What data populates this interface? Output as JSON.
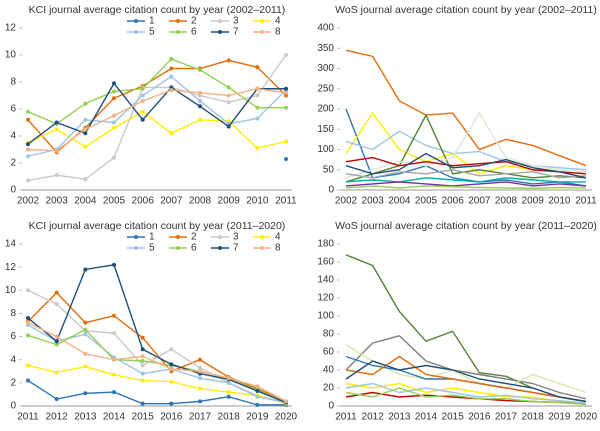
{
  "chart_data": [
    {
      "type": "line",
      "title": "KCI journal average citation count by year (2002–2011)",
      "categories": [
        "2002",
        "2003",
        "2004",
        "2005",
        "2006",
        "2007",
        "2008",
        "2009",
        "2010",
        "2011"
      ],
      "ylim": [
        0,
        12
      ],
      "yticks": [
        0,
        2,
        4,
        6,
        8,
        10,
        12
      ],
      "grid": false,
      "legend": "top-right",
      "series": [
        {
          "name": "1",
          "color": "#2e75b6",
          "values": [
            null,
            null,
            null,
            null,
            null,
            null,
            null,
            null,
            null,
            2.3
          ]
        },
        {
          "name": "2",
          "color": "#e46c0a",
          "values": [
            5.2,
            2.8,
            4.6,
            6.8,
            7.7,
            9.0,
            9.0,
            9.6,
            9.1,
            7.0
          ]
        },
        {
          "name": "3",
          "color": "#c8c8c8",
          "values": [
            0.7,
            1.1,
            0.8,
            2.4,
            7.6,
            7.6,
            7.0,
            6.5,
            7.0,
            10.0
          ]
        },
        {
          "name": "4",
          "color": "#ffee00",
          "values": [
            3.5,
            4.5,
            3.2,
            4.6,
            5.8,
            4.2,
            5.2,
            5.1,
            3.1,
            3.6
          ]
        },
        {
          "name": "5",
          "color": "#9dc3e6",
          "values": [
            2.5,
            3.0,
            5.2,
            5.0,
            7.0,
            8.4,
            6.6,
            4.9,
            5.3,
            7.4
          ]
        },
        {
          "name": "6",
          "color": "#92d050",
          "values": [
            5.8,
            4.9,
            6.4,
            7.3,
            7.5,
            9.7,
            8.9,
            7.6,
            6.1,
            6.1
          ]
        },
        {
          "name": "7",
          "color": "#1f4e79",
          "values": [
            3.4,
            5.0,
            4.2,
            7.9,
            5.2,
            7.6,
            6.2,
            4.7,
            7.5,
            7.5
          ]
        },
        {
          "name": "8",
          "color": "#f4b183",
          "values": [
            3.0,
            2.9,
            4.5,
            5.5,
            6.6,
            7.4,
            7.2,
            7.0,
            7.5,
            7.2
          ]
        }
      ]
    },
    {
      "type": "line",
      "title": "WoS journal average citation count by year (2002–2011)",
      "categories": [
        "2002",
        "2003",
        "2004",
        "2005",
        "2006",
        "2007",
        "2008",
        "2009",
        "2010",
        "2011"
      ],
      "ylim": [
        0,
        400
      ],
      "yticks": [
        0,
        50,
        100,
        150,
        200,
        250,
        300,
        350,
        400
      ],
      "grid": false,
      "series": [
        {
          "color": "#e46c0a",
          "values": [
            345,
            330,
            220,
            185,
            190,
            100,
            125,
            110,
            85,
            60
          ]
        },
        {
          "color": "#2e75b6",
          "values": [
            200,
            30,
            40,
            60,
            30,
            20,
            25,
            15,
            20,
            10
          ]
        },
        {
          "color": "#ffee00",
          "values": [
            90,
            190,
            100,
            70,
            90,
            40,
            60,
            50,
            45,
            40
          ]
        },
        {
          "color": "#9dc3e6",
          "values": [
            120,
            100,
            145,
            110,
            90,
            95,
            70,
            60,
            55,
            50
          ]
        },
        {
          "color": "#548235",
          "values": [
            20,
            40,
            60,
            185,
            40,
            50,
            40,
            30,
            35,
            30
          ]
        },
        {
          "color": "#d9ead3",
          "values": [
            30,
            50,
            70,
            60,
            80,
            190,
            80,
            60,
            50,
            45
          ]
        },
        {
          "color": "#c00000",
          "values": [
            70,
            80,
            60,
            70,
            60,
            65,
            70,
            50,
            45,
            40
          ]
        },
        {
          "color": "#a5a5a5",
          "values": [
            40,
            30,
            45,
            40,
            50,
            35,
            40,
            45,
            30,
            35
          ]
        },
        {
          "color": "#1f4e79",
          "values": [
            60,
            40,
            50,
            90,
            55,
            60,
            75,
            55,
            45,
            30
          ]
        },
        {
          "color": "#00b0a0",
          "values": [
            20,
            25,
            20,
            30,
            25,
            20,
            30,
            25,
            20,
            20
          ]
        },
        {
          "color": "#7030a0",
          "values": [
            10,
            15,
            20,
            15,
            10,
            15,
            20,
            10,
            15,
            10
          ]
        },
        {
          "color": "#92d050",
          "values": [
            5,
            10,
            5,
            10,
            8,
            6,
            5,
            4,
            6,
            5
          ]
        }
      ]
    },
    {
      "type": "line",
      "title": "KCI journal average citation count by year (2011–2020)",
      "categories": [
        "2011",
        "2012",
        "2013",
        "2014",
        "2015",
        "2016",
        "2017",
        "2018",
        "2019",
        "2020"
      ],
      "ylim": [
        0,
        14
      ],
      "yticks": [
        0,
        2,
        4,
        6,
        8,
        10,
        12,
        14
      ],
      "grid": false,
      "legend": "top-right",
      "series": [
        {
          "name": "1",
          "color": "#2e75b6",
          "values": [
            2.2,
            0.6,
            1.1,
            1.2,
            0.2,
            0.2,
            0.4,
            0.8,
            0.1,
            0.1
          ]
        },
        {
          "name": "2",
          "color": "#e46c0a",
          "values": [
            7.3,
            9.8,
            7.2,
            7.8,
            5.9,
            3.0,
            4.0,
            2.5,
            1.5,
            0.4
          ]
        },
        {
          "name": "3",
          "color": "#c8c8c8",
          "values": [
            10.0,
            8.8,
            6.5,
            6.3,
            3.5,
            4.9,
            3.3,
            2.0,
            0.9,
            0.3
          ]
        },
        {
          "name": "4",
          "color": "#ffee00",
          "values": [
            3.5,
            2.9,
            3.4,
            2.7,
            2.2,
            2.1,
            1.5,
            1.2,
            0.9,
            0.2
          ]
        },
        {
          "name": "5",
          "color": "#9dc3e6",
          "values": [
            7.0,
            5.6,
            6.2,
            4.2,
            2.8,
            3.2,
            2.4,
            2.0,
            0.8,
            0.3
          ]
        },
        {
          "name": "6",
          "color": "#92d050",
          "values": [
            6.1,
            5.3,
            6.6,
            4.0,
            3.9,
            3.5,
            3.0,
            2.4,
            1.4,
            0.3
          ]
        },
        {
          "name": "7",
          "color": "#1f4e79",
          "values": [
            7.6,
            5.6,
            11.8,
            12.2,
            4.9,
            3.6,
            2.8,
            2.3,
            1.3,
            0.3
          ]
        },
        {
          "name": "8",
          "color": "#f4b183",
          "values": [
            7.2,
            6.0,
            4.5,
            4.0,
            4.3,
            3.2,
            3.0,
            2.4,
            1.7,
            0.4
          ]
        }
      ]
    },
    {
      "type": "line",
      "title": "WoS journal average citation count by year (2011–2020)",
      "categories": [
        "2011",
        "2012",
        "2013",
        "2014",
        "2015",
        "2016",
        "2017",
        "2018",
        "2019",
        "2020"
      ],
      "ylim": [
        0,
        180
      ],
      "yticks": [
        0,
        20,
        40,
        60,
        80,
        100,
        120,
        140,
        160,
        180
      ],
      "grid": false,
      "series": [
        {
          "color": "#548235",
          "values": [
            168,
            156,
            105,
            72,
            83,
            37,
            33,
            20,
            10,
            5
          ]
        },
        {
          "color": "#7f7f7f",
          "values": [
            40,
            70,
            78,
            50,
            40,
            35,
            30,
            25,
            15,
            8
          ]
        },
        {
          "color": "#d6e8a8",
          "values": [
            68,
            50,
            35,
            30,
            40,
            25,
            20,
            35,
            25,
            15
          ]
        },
        {
          "color": "#2e75b6",
          "values": [
            55,
            45,
            40,
            30,
            30,
            25,
            20,
            15,
            10,
            5
          ]
        },
        {
          "color": "#e46c0a",
          "values": [
            40,
            35,
            55,
            35,
            30,
            25,
            20,
            15,
            10,
            5
          ]
        },
        {
          "color": "#1f4e79",
          "values": [
            30,
            50,
            40,
            45,
            40,
            30,
            25,
            20,
            10,
            5
          ]
        },
        {
          "color": "#ffee00",
          "values": [
            25,
            20,
            25,
            15,
            20,
            15,
            10,
            10,
            5,
            3
          ]
        },
        {
          "color": "#9dc3e6",
          "values": [
            20,
            25,
            15,
            20,
            15,
            10,
            12,
            8,
            6,
            3
          ]
        },
        {
          "color": "#c00000",
          "values": [
            10,
            15,
            10,
            12,
            10,
            8,
            6,
            5,
            4,
            2
          ]
        },
        {
          "color": "#92d050",
          "values": [
            15,
            10,
            20,
            10,
            12,
            8,
            8,
            5,
            4,
            2
          ]
        }
      ]
    }
  ]
}
